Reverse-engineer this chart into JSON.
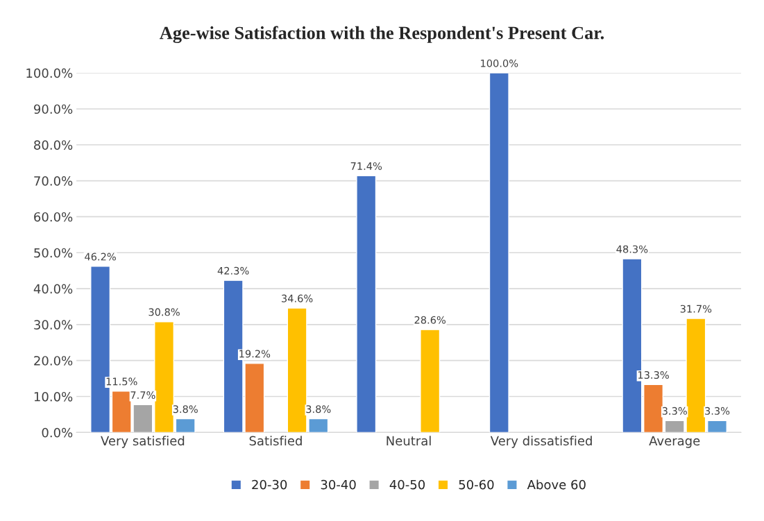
{
  "chart_data": {
    "type": "bar",
    "title": "Age-wise Satisfaction with the Respondent's Present Car.",
    "categories": [
      "Very satisfied",
      "Satisfied",
      "Neutral",
      "Very dissatisfied",
      "Average"
    ],
    "series": [
      {
        "name": "20-30",
        "color": "#4472c4",
        "values": [
          46.2,
          42.3,
          71.4,
          100.0,
          48.3
        ],
        "value_labels": [
          "46.2%",
          "42.3%",
          "71.4%",
          "100.0%",
          "48.3%"
        ]
      },
      {
        "name": "30-40",
        "color": "#ed7d31",
        "values": [
          11.5,
          19.2,
          null,
          null,
          13.3
        ],
        "value_labels": [
          "11.5%",
          "19.2%",
          null,
          null,
          "13.3%"
        ]
      },
      {
        "name": "40-50",
        "color": "#a5a5a5",
        "values": [
          7.7,
          null,
          null,
          null,
          3.3
        ],
        "value_labels": [
          "7.7%",
          null,
          null,
          null,
          "3.3%"
        ]
      },
      {
        "name": "50-60",
        "color": "#ffc000",
        "values": [
          30.8,
          34.6,
          28.6,
          null,
          31.7
        ],
        "value_labels": [
          "30.8%",
          "34.6%",
          "28.6%",
          null,
          "31.7%"
        ]
      },
      {
        "name": "Above 60",
        "color": "#5b9bd5",
        "values": [
          3.8,
          3.8,
          null,
          null,
          3.3
        ],
        "value_labels": [
          "3.8%",
          "3.8%",
          null,
          null,
          "3.3%"
        ]
      }
    ],
    "ylim": [
      0,
      100
    ],
    "yticks": [
      {
        "value": 0,
        "label": "0.0%"
      },
      {
        "value": 10,
        "label": "10.0%"
      },
      {
        "value": 20,
        "label": "20.0%"
      },
      {
        "value": 30,
        "label": "30.0%"
      },
      {
        "value": 40,
        "label": "40.0%"
      },
      {
        "value": 50,
        "label": "50.0%"
      },
      {
        "value": 60,
        "label": "60.0%"
      },
      {
        "value": 70,
        "label": "70.0%"
      },
      {
        "value": 80,
        "label": "80.0%"
      },
      {
        "value": 90,
        "label": "90.0%"
      },
      {
        "value": 100,
        "label": "100.0%"
      }
    ],
    "grid": "y",
    "legend": "bottom"
  }
}
